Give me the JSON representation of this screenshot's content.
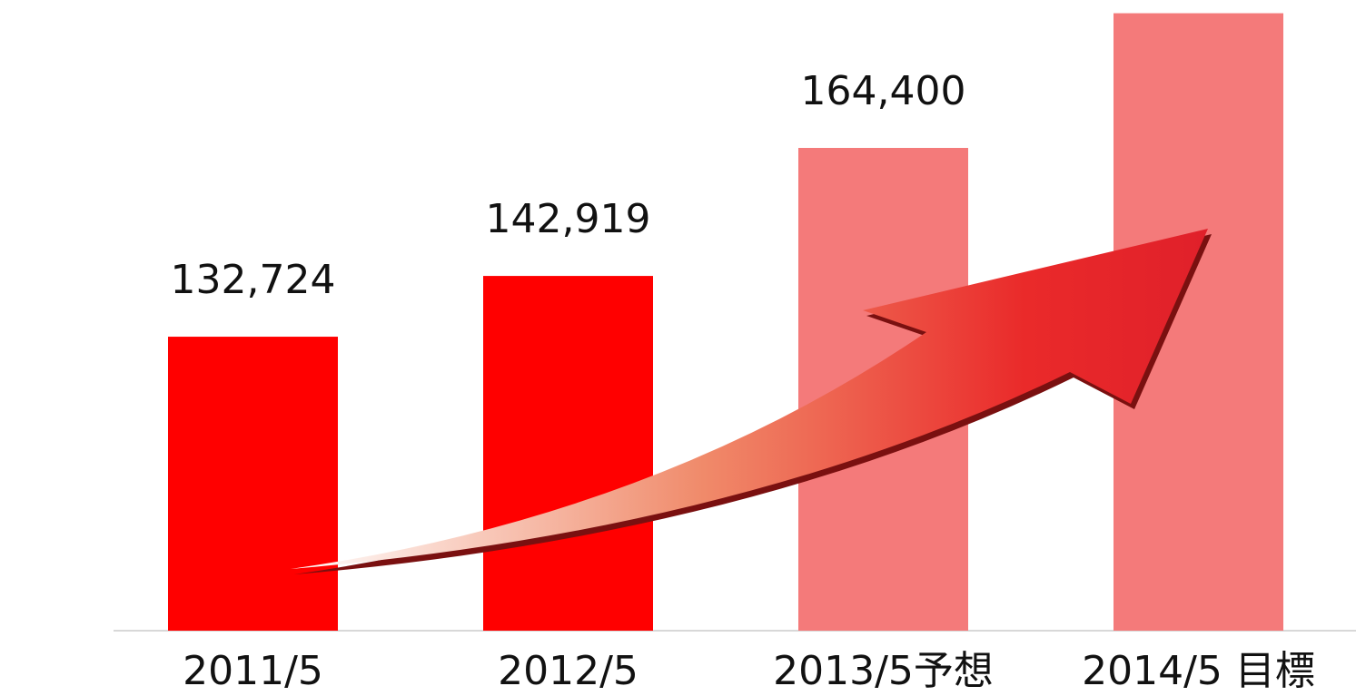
{
  "chart_data": {
    "type": "bar",
    "categories": [
      "2011/5",
      "2012/5",
      "2013/5予想",
      "2014/5 目標"
    ],
    "values": [
      132724,
      142919,
      164400,
      187000
    ],
    "value_labels": [
      "132,724",
      "142,919",
      "164,400",
      null
    ],
    "colors": [
      "#ff0000",
      "#ff0000",
      "#f47a7a",
      "#f47a7a"
    ],
    "ylim": [
      83400,
      188000
    ]
  }
}
